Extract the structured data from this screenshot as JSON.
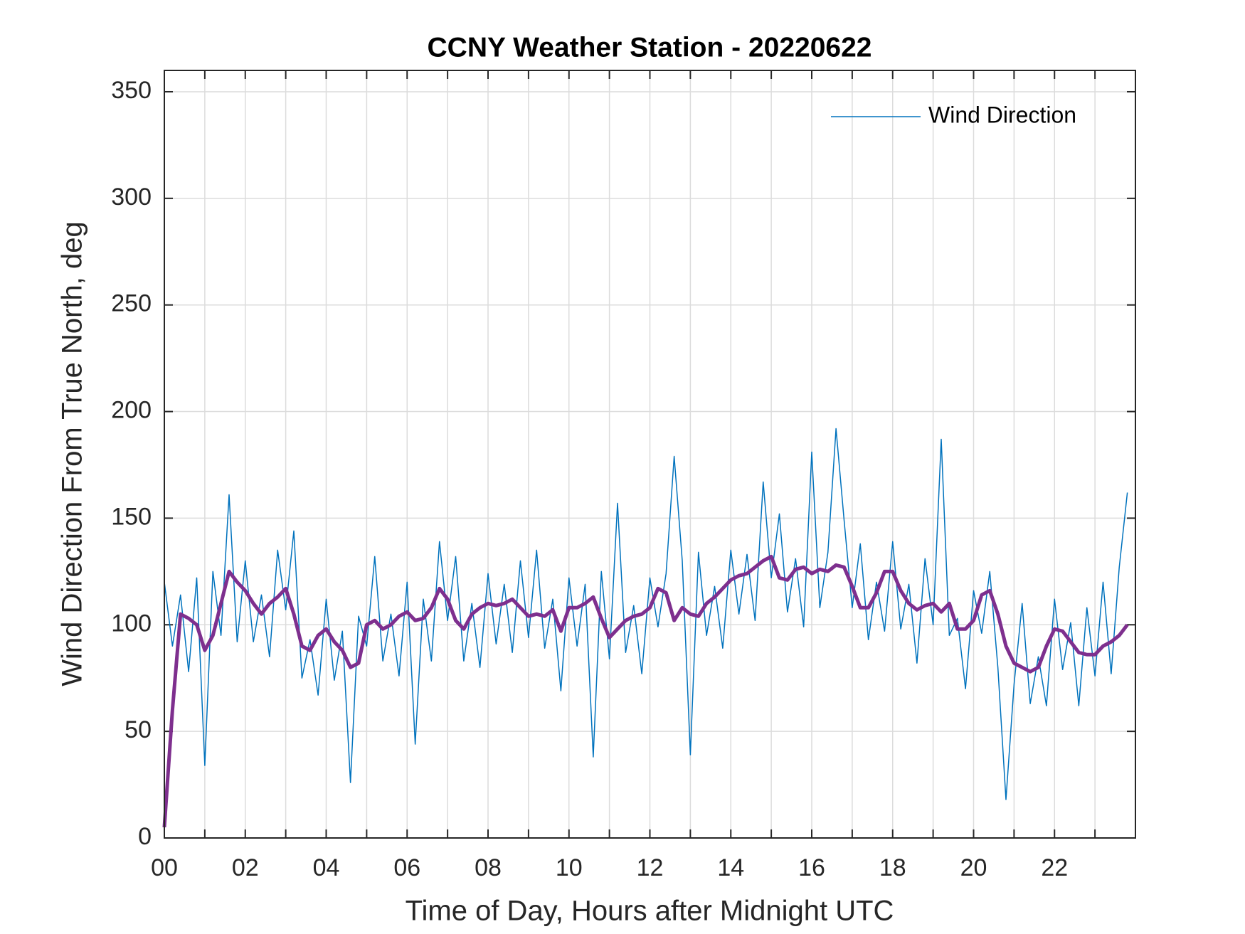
{
  "chart_data": {
    "type": "line",
    "title": "CCNY Weather Station - 20220622",
    "x_label": "Time of Day, Hours after Midnight UTC",
    "y_label": "Wind Direction From True North, deg",
    "x": [
      0,
      0.2,
      0.4,
      0.6,
      0.8,
      1,
      1.2,
      1.4,
      1.6,
      1.8,
      2,
      2.2,
      2.4,
      2.6,
      2.8,
      3,
      3.2,
      3.4,
      3.6,
      3.8,
      4,
      4.2,
      4.4,
      4.6,
      4.8,
      5,
      5.2,
      5.4,
      5.6,
      5.8,
      6,
      6.2,
      6.4,
      6.6,
      6.8,
      7,
      7.2,
      7.4,
      7.6,
      7.8,
      8,
      8.2,
      8.4,
      8.6,
      8.8,
      9,
      9.2,
      9.4,
      9.6,
      9.8,
      10,
      10.2,
      10.4,
      10.6,
      10.8,
      11,
      11.2,
      11.4,
      11.6,
      11.8,
      12,
      12.2,
      12.4,
      12.6,
      12.8,
      13,
      13.2,
      13.4,
      13.6,
      13.8,
      14,
      14.2,
      14.4,
      14.6,
      14.8,
      15,
      15.2,
      15.4,
      15.6,
      15.8,
      16,
      16.2,
      16.4,
      16.6,
      16.8,
      17,
      17.2,
      17.4,
      17.6,
      17.8,
      18,
      18.2,
      18.4,
      18.6,
      18.8,
      19,
      19.2,
      19.4,
      19.6,
      19.8,
      20,
      20.2,
      20.4,
      20.6,
      20.8,
      21,
      21.2,
      21.4,
      21.6,
      21.8,
      22,
      22.2,
      22.4,
      22.6,
      22.8,
      23,
      23.2,
      23.4,
      23.6,
      23.8
    ],
    "series": [
      {
        "name": "Wind Direction",
        "color": "#0072bd",
        "width": 1.5,
        "values": [
          120,
          90,
          114,
          78,
          122,
          34,
          125,
          95,
          161,
          92,
          130,
          92,
          114,
          85,
          135,
          107,
          144,
          75,
          93,
          67,
          112,
          74,
          97,
          26,
          104,
          90,
          132,
          83,
          105,
          76,
          120,
          44,
          112,
          83,
          139,
          102,
          132,
          83,
          110,
          80,
          124,
          91,
          119,
          87,
          130,
          94,
          135,
          89,
          112,
          69,
          122,
          90,
          119,
          38,
          125,
          84,
          157,
          87,
          109,
          77,
          122,
          99,
          124,
          179,
          130,
          39,
          134,
          95,
          118,
          89,
          135,
          105,
          133,
          102,
          167,
          122,
          152,
          106,
          131,
          99,
          181,
          108,
          134,
          192,
          149,
          108,
          138,
          93,
          120,
          97,
          139,
          98,
          119,
          82,
          131,
          100,
          187,
          95,
          103,
          70,
          116,
          96,
          125,
          80,
          18,
          72,
          110,
          63,
          85,
          62,
          112,
          79,
          101,
          62,
          108,
          76,
          120,
          77,
          127,
          162
        ]
      },
      {
        "color": "#7e2f8e",
        "width": 5,
        "legend": false,
        "values": [
          5,
          60,
          105,
          103,
          100,
          88,
          95,
          110,
          125,
          120,
          116,
          110,
          105,
          110,
          113,
          117,
          105,
          90,
          88,
          95,
          98,
          92,
          88,
          80,
          82,
          100,
          102,
          98,
          100,
          104,
          106,
          102,
          103,
          108,
          117,
          112,
          102,
          98,
          105,
          108,
          110,
          109,
          110,
          112,
          108,
          104,
          105,
          104,
          107,
          97,
          108,
          108,
          110,
          113,
          103,
          94,
          98,
          102,
          104,
          105,
          108,
          117,
          115,
          102,
          108,
          105,
          104,
          110,
          113,
          117,
          121,
          123,
          124,
          127,
          130,
          132,
          122,
          121,
          126,
          127,
          124,
          126,
          125,
          128,
          127,
          118,
          108,
          108,
          115,
          125,
          125,
          116,
          110,
          107,
          109,
          110,
          106,
          110,
          98,
          98,
          102,
          114,
          116,
          105,
          90,
          82,
          80,
          78,
          80,
          90,
          98,
          97,
          92,
          87,
          86,
          86,
          90,
          92,
          95,
          100
        ]
      }
    ],
    "xlim": [
      0,
      24
    ],
    "xticks": [
      {
        "value": 0,
        "label": "00"
      },
      {
        "value": 2,
        "label": "02"
      },
      {
        "value": 4,
        "label": "04"
      },
      {
        "value": 6,
        "label": "06"
      },
      {
        "value": 8,
        "label": "08"
      },
      {
        "value": 10,
        "label": "10"
      },
      {
        "value": 12,
        "label": "12"
      },
      {
        "value": 14,
        "label": "14"
      },
      {
        "value": 16,
        "label": "16"
      },
      {
        "value": 18,
        "label": "18"
      },
      {
        "value": 20,
        "label": "20"
      },
      {
        "value": 22,
        "label": "22"
      }
    ],
    "xminorticks": [
      1,
      3,
      5,
      7,
      9,
      11,
      13,
      15,
      17,
      19,
      21,
      23
    ],
    "ylim": [
      0,
      360
    ],
    "yticks": [
      0,
      50,
      100,
      150,
      200,
      250,
      300,
      350
    ],
    "grid": true,
    "legend": "upper right"
  }
}
